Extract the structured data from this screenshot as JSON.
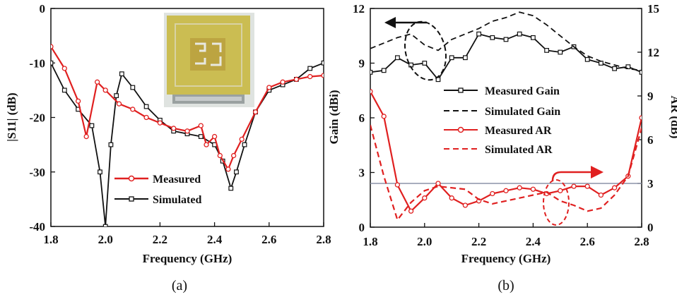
{
  "chart_data": [
    {
      "type": "line",
      "caption": "(a)",
      "xlabel": "Frequency (GHz)",
      "ylabel": "|S11| (dB)",
      "xlim": [
        1.8,
        2.8
      ],
      "ylim": [
        -40,
        0
      ],
      "xticks": [
        "1.8",
        "2.0",
        "2.2",
        "2.4",
        "2.6",
        "2.8"
      ],
      "yticks": [
        "0",
        "-10",
        "-20",
        "-30",
        "-40"
      ],
      "legend_position": "bottom-center",
      "inset": "photo of antenna prototype",
      "series": [
        {
          "name": "Measured",
          "color": "#e02020",
          "marker": "circle",
          "x": [
            1.8,
            1.85,
            1.9,
            1.93,
            1.97,
            2.0,
            2.05,
            2.1,
            2.15,
            2.2,
            2.25,
            2.3,
            2.35,
            2.37,
            2.4,
            2.42,
            2.45,
            2.47,
            2.5,
            2.55,
            2.6,
            2.65,
            2.7,
            2.75,
            2.8
          ],
          "y": [
            -7,
            -11,
            -17,
            -23.5,
            -13.5,
            -15,
            -17.5,
            -18.5,
            -20,
            -21,
            -22,
            -22.5,
            -21.5,
            -25,
            -23.5,
            -27,
            -29.5,
            -27,
            -24,
            -19,
            -14.5,
            -13.5,
            -13,
            -12.5,
            -12.3
          ]
        },
        {
          "name": "Simulated",
          "color": "#111111",
          "marker": "square",
          "x": [
            1.8,
            1.85,
            1.9,
            1.95,
            1.98,
            2.0,
            2.02,
            2.04,
            2.06,
            2.1,
            2.15,
            2.2,
            2.25,
            2.3,
            2.35,
            2.4,
            2.43,
            2.46,
            2.48,
            2.51,
            2.55,
            2.6,
            2.65,
            2.7,
            2.75,
            2.8
          ],
          "y": [
            -10,
            -15,
            -18.5,
            -21.5,
            -30,
            -40,
            -25,
            -16,
            -12,
            -14.5,
            -18,
            -20.5,
            -22.5,
            -23,
            -23.5,
            -25,
            -28,
            -33,
            -30,
            -25,
            -19,
            -15,
            -14,
            -13,
            -11,
            -10
          ]
        }
      ]
    },
    {
      "type": "line",
      "caption": "(b)",
      "xlabel": "Frequency (GHz)",
      "ylabel_left": "Gain (dBi)",
      "ylabel_right": "AR (dB)",
      "xlim": [
        1.8,
        2.8
      ],
      "ylim_left": [
        0,
        12
      ],
      "ylim_right": [
        0,
        15
      ],
      "xticks": [
        "1.8",
        "2.0",
        "2.2",
        "2.4",
        "2.6",
        "2.8"
      ],
      "yticks_left": [
        "0",
        "3",
        "6",
        "9",
        "12"
      ],
      "yticks_right": [
        "0",
        "3",
        "6",
        "9",
        "12",
        "15"
      ],
      "reference_line_ar": 3,
      "legend_position": "center",
      "series": [
        {
          "name": "Measured Gain",
          "axis": "left",
          "color": "#111111",
          "dash": "solid",
          "marker": "square",
          "x": [
            1.8,
            1.85,
            1.9,
            1.95,
            2.0,
            2.05,
            2.1,
            2.15,
            2.2,
            2.25,
            2.3,
            2.35,
            2.4,
            2.45,
            2.5,
            2.55,
            2.6,
            2.65,
            2.7,
            2.75,
            2.8
          ],
          "y": [
            8.5,
            8.6,
            9.3,
            8.9,
            9.0,
            8.1,
            9.3,
            9.3,
            10.6,
            10.4,
            10.3,
            10.6,
            10.4,
            9.7,
            9.6,
            9.9,
            9.2,
            9.0,
            8.7,
            8.8,
            8.5
          ]
        },
        {
          "name": "Simulated Gain",
          "axis": "left",
          "color": "#111111",
          "dash": "dashed",
          "marker": "none",
          "x": [
            1.8,
            1.85,
            1.9,
            1.95,
            2.0,
            2.05,
            2.1,
            2.15,
            2.2,
            2.25,
            2.3,
            2.35,
            2.4,
            2.45,
            2.5,
            2.55,
            2.6,
            2.65,
            2.7,
            2.75,
            2.8
          ],
          "y": [
            9.8,
            10.1,
            10.4,
            10.6,
            10.0,
            9.7,
            10.3,
            10.6,
            10.9,
            11.3,
            11.5,
            11.8,
            11.6,
            11.1,
            10.5,
            9.9,
            9.4,
            9.1,
            8.9,
            8.7,
            8.6
          ]
        },
        {
          "name": "Measured AR",
          "axis": "right",
          "color": "#e02020",
          "dash": "solid",
          "marker": "circle",
          "x": [
            1.8,
            1.85,
            1.9,
            1.95,
            2.0,
            2.05,
            2.1,
            2.15,
            2.2,
            2.25,
            2.3,
            2.35,
            2.4,
            2.45,
            2.5,
            2.55,
            2.6,
            2.65,
            2.7,
            2.75,
            2.8
          ],
          "y": [
            9.3,
            7.6,
            2.9,
            1.1,
            2.0,
            3.0,
            2.0,
            1.5,
            1.8,
            2.3,
            2.5,
            2.7,
            2.6,
            2.3,
            2.5,
            2.8,
            2.8,
            2.2,
            2.7,
            3.5,
            7.5
          ]
        },
        {
          "name": "Simulated AR",
          "axis": "right",
          "color": "#e02020",
          "dash": "dashed",
          "marker": "none",
          "x": [
            1.8,
            1.85,
            1.9,
            1.95,
            2.0,
            2.05,
            2.1,
            2.15,
            2.2,
            2.25,
            2.3,
            2.35,
            2.4,
            2.45,
            2.5,
            2.55,
            2.6,
            2.65,
            2.7,
            2.75,
            2.8
          ],
          "y": [
            7.0,
            3.5,
            0.5,
            1.7,
            2.5,
            2.8,
            2.7,
            2.6,
            1.9,
            1.6,
            1.8,
            2.0,
            2.2,
            2.4,
            1.8,
            1.5,
            1.1,
            1.3,
            2.2,
            3.5,
            6.8
          ]
        }
      ]
    }
  ]
}
